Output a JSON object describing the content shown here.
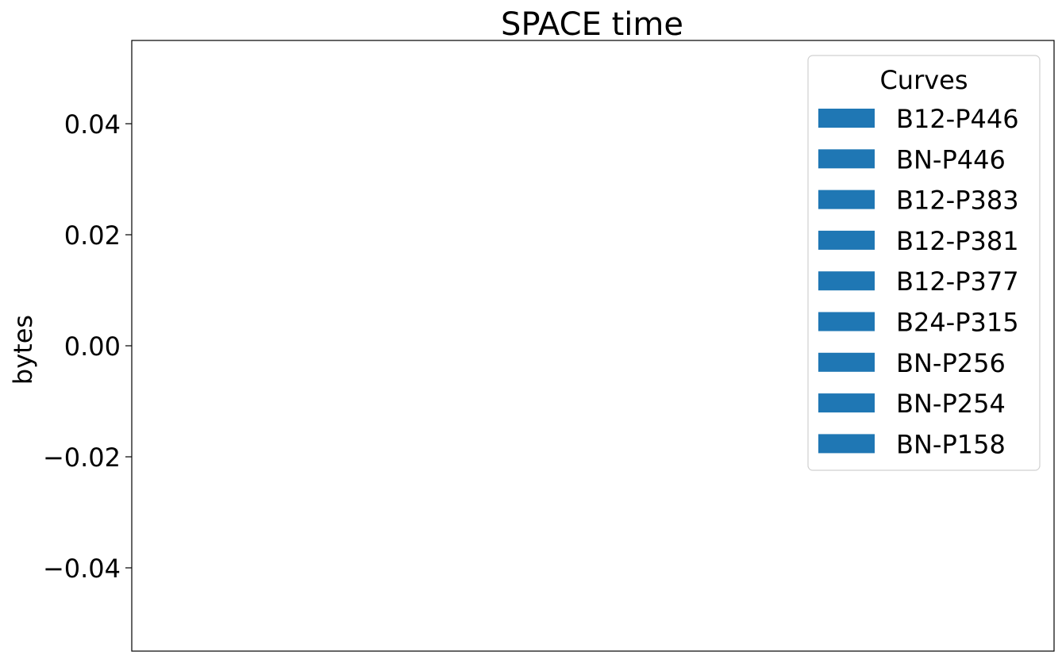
{
  "chart_data": {
    "type": "bar",
    "title": "SPACE time",
    "xlabel": "",
    "ylabel": "bytes",
    "ylim": [
      -0.055,
      0.055
    ],
    "y_ticks": [
      {
        "value": 0.04,
        "label": "0.04"
      },
      {
        "value": 0.02,
        "label": "0.02"
      },
      {
        "value": 0.0,
        "label": "0.00"
      },
      {
        "value": -0.02,
        "label": "−0.02"
      },
      {
        "value": -0.04,
        "label": "−0.04"
      }
    ],
    "x_ticks": [],
    "grid": false,
    "legend": {
      "title": "Curves",
      "placement": "top-right"
    },
    "series": [
      {
        "name": "B12-P446",
        "color": "#1f77b4",
        "values": []
      },
      {
        "name": "BN-P446",
        "color": "#1f77b4",
        "values": []
      },
      {
        "name": "B12-P383",
        "color": "#1f77b4",
        "values": []
      },
      {
        "name": "B12-P381",
        "color": "#1f77b4",
        "values": []
      },
      {
        "name": "B12-P377",
        "color": "#1f77b4",
        "values": []
      },
      {
        "name": "B24-P315",
        "color": "#1f77b4",
        "values": []
      },
      {
        "name": "BN-P256",
        "color": "#1f77b4",
        "values": []
      },
      {
        "name": "BN-P254",
        "color": "#1f77b4",
        "values": []
      },
      {
        "name": "BN-P158",
        "color": "#1f77b4",
        "values": []
      }
    ]
  }
}
